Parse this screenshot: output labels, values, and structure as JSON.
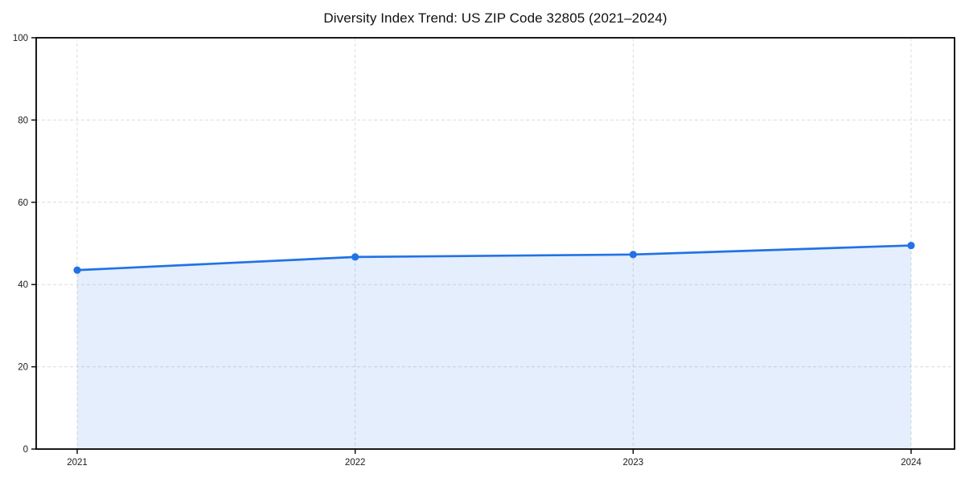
{
  "chart_data": {
    "type": "area",
    "title": "Diversity Index Trend: US ZIP Code 32805 (2021–2024)",
    "categories": [
      "2021",
      "2022",
      "2023",
      "2024"
    ],
    "series": [
      {
        "name": "Diversity Index",
        "values": [
          43.5,
          46.7,
          47.3,
          49.5
        ]
      }
    ],
    "xlabel": "",
    "ylabel": "",
    "ylim": [
      0,
      100
    ],
    "yticks": [
      0,
      20,
      40,
      60,
      80,
      100
    ],
    "grid": true,
    "grid_style": "dashed",
    "legend_position": "none",
    "colors": {
      "line": "#2272e5",
      "marker": "#2272e5",
      "fill": "#2272e5",
      "fill_opacity": 0.12,
      "grid": "#dcdcdc",
      "axis": "#000000",
      "tick_text": "#1a1a1a",
      "background": "#ffffff"
    }
  }
}
